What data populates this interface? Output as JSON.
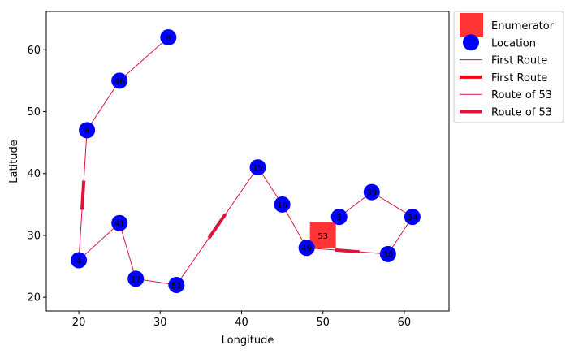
{
  "chart_data": {
    "type": "scatter",
    "xlabel": "Longitude",
    "ylabel": "Latitude",
    "xlim": [
      16,
      65.5
    ],
    "ylim": [
      17.8,
      66.2
    ],
    "xticks": [
      20,
      30,
      40,
      50,
      60
    ],
    "yticks": [
      20,
      30,
      40,
      50,
      60
    ],
    "grid": false,
    "legend_position": "outside-top-right",
    "colors": {
      "location": "#0000ff",
      "enumerator": "#ff2a2a",
      "route": "#dc143c",
      "route_thick": "#ff0000"
    },
    "enumerator": {
      "x": 50,
      "y": 30,
      "label": "53"
    },
    "locations": [
      {
        "x": 31,
        "y": 62,
        "label": "8"
      },
      {
        "x": 25,
        "y": 55,
        "label": "46"
      },
      {
        "x": 21,
        "y": 47,
        "label": "6"
      },
      {
        "x": 20,
        "y": 26,
        "label": "4"
      },
      {
        "x": 25,
        "y": 32,
        "label": "41"
      },
      {
        "x": 27,
        "y": 23,
        "label": "17"
      },
      {
        "x": 32,
        "y": 22,
        "label": "51"
      },
      {
        "x": 42,
        "y": 41,
        "label": "15"
      },
      {
        "x": 45,
        "y": 35,
        "label": "16"
      },
      {
        "x": 48,
        "y": 28,
        "label": "49"
      },
      {
        "x": 52,
        "y": 33,
        "label": "3"
      },
      {
        "x": 56,
        "y": 37,
        "label": "39"
      },
      {
        "x": 61,
        "y": 33,
        "label": "34"
      },
      {
        "x": 58,
        "y": 27,
        "label": "30"
      }
    ],
    "route": [
      [
        50,
        30
      ],
      [
        52,
        33
      ],
      [
        56,
        37
      ],
      [
        61,
        33
      ],
      [
        58,
        27
      ],
      [
        48,
        28
      ],
      [
        45,
        35
      ],
      [
        42,
        41
      ],
      [
        32,
        22
      ],
      [
        27,
        23
      ],
      [
        25,
        32
      ],
      [
        20,
        26
      ],
      [
        21,
        47
      ],
      [
        25,
        55
      ],
      [
        31,
        62
      ]
    ],
    "thick_segments": [
      {
        "from": 4,
        "to": 5
      },
      {
        "from": 7,
        "to": 8
      },
      {
        "from": 11,
        "to": 12
      }
    ],
    "legend": [
      {
        "label": "Enumerator",
        "marker": "square"
      },
      {
        "label": "Location",
        "marker": "circle"
      },
      {
        "label": "First Route",
        "marker": "thin-line",
        "color": "#ff0000"
      },
      {
        "label": "First Route",
        "marker": "thick-line",
        "color": "#ff0000"
      },
      {
        "label": "Route of 53",
        "marker": "thin-line",
        "color": "#dc143c"
      },
      {
        "label": "Route of 53",
        "marker": "thick-line",
        "color": "#dc143c"
      }
    ]
  }
}
